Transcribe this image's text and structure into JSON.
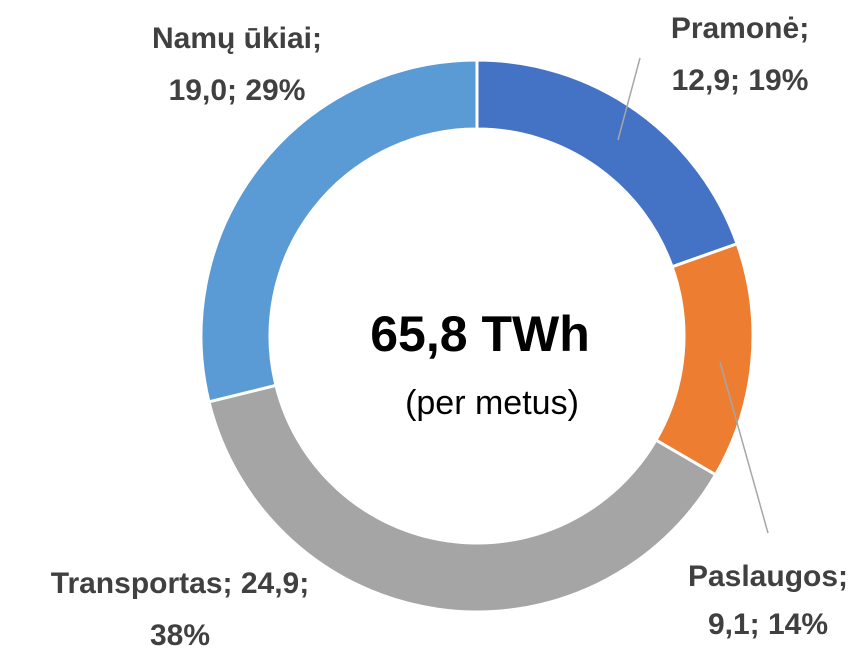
{
  "chart_data": {
    "type": "donut",
    "values": [
      12.9,
      9.1,
      24.9,
      19.0
    ],
    "value_labels": [
      [
        "Pramonė;",
        "12,9; 19%"
      ],
      [
        "Paslaugos;",
        "9,1; 14%"
      ],
      [
        "Transportas; 24,9;",
        "38%"
      ],
      [
        "Namų ūkiai;",
        "19,0; 29%"
      ]
    ],
    "colors": [
      "#4472c4",
      "#ed7d31",
      "#a5a5a5",
      "#5b9bd5"
    ],
    "center_label": "65,8 TWh",
    "center_sublabel": "(per metus)"
  }
}
